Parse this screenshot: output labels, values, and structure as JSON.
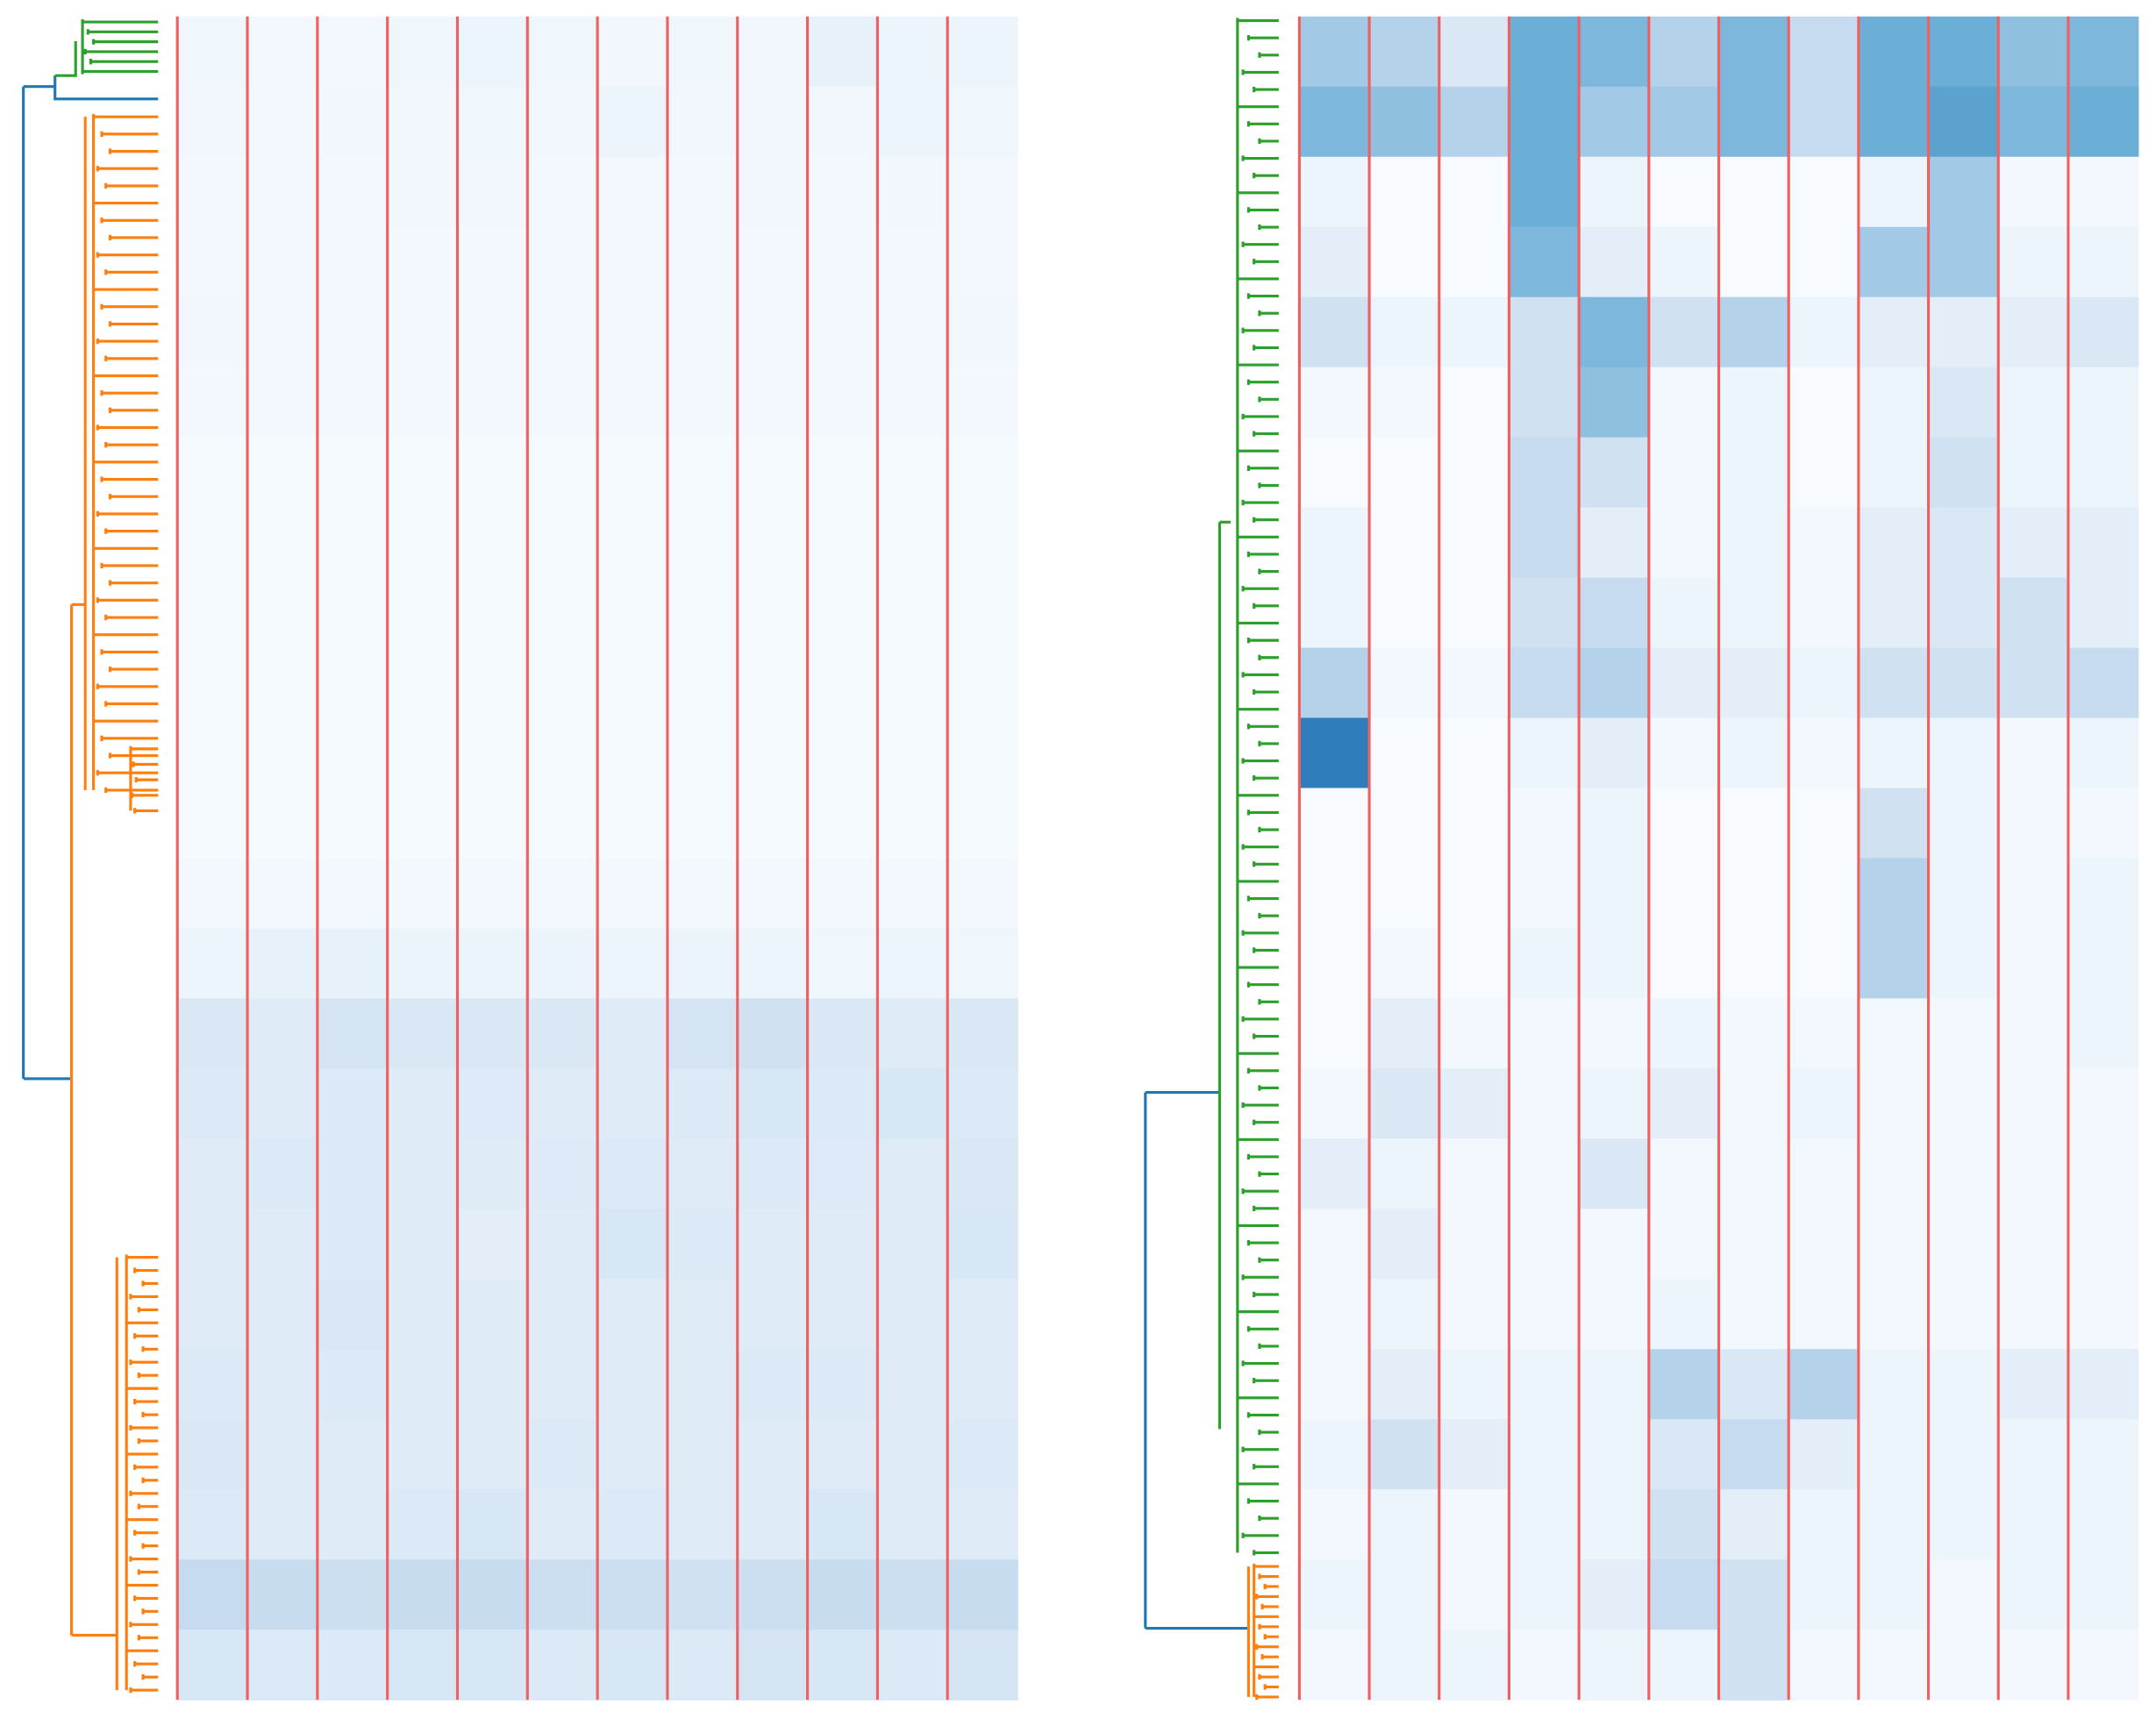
{
  "chart_data": [
    {
      "type": "heatmap",
      "colorscale": [
        "#f7fbff",
        "#c6dbef",
        "#6baed6",
        "#2171b5",
        "#08306b"
      ],
      "zlim": [
        0,
        1
      ],
      "separator_color": "#f06060",
      "values": [
        [
          0.04,
          0.02,
          0.02,
          0.04,
          0.05,
          0.04,
          0.03,
          0.04,
          0.03,
          0.08,
          0.05,
          0.05
        ],
        [
          0.03,
          0.02,
          0.03,
          0.03,
          0.04,
          0.03,
          0.05,
          0.03,
          0.03,
          0.03,
          0.05,
          0.04
        ],
        [
          0.02,
          0.02,
          0.02,
          0.03,
          0.03,
          0.02,
          0.02,
          0.02,
          0.03,
          0.02,
          0.03,
          0.02
        ],
        [
          0.02,
          0.02,
          0.02,
          0.02,
          0.02,
          0.02,
          0.02,
          0.02,
          0.02,
          0.02,
          0.02,
          0.02
        ],
        [
          0.03,
          0.02,
          0.02,
          0.02,
          0.02,
          0.02,
          0.02,
          0.02,
          0.02,
          0.02,
          0.02,
          0.03
        ],
        [
          0.02,
          0.02,
          0.02,
          0.02,
          0.02,
          0.02,
          0.02,
          0.02,
          0.02,
          0.02,
          0.02,
          0.02
        ],
        [
          0.01,
          0.01,
          0.01,
          0.01,
          0.01,
          0.01,
          0.01,
          0.01,
          0.01,
          0.01,
          0.01,
          0.01
        ],
        [
          0.01,
          0.01,
          0.01,
          0.01,
          0.01,
          0.01,
          0.01,
          0.01,
          0.01,
          0.01,
          0.01,
          0.01
        ],
        [
          0.01,
          0.01,
          0.01,
          0.01,
          0.01,
          0.01,
          0.01,
          0.01,
          0.01,
          0.01,
          0.01,
          0.01
        ],
        [
          0.01,
          0.01,
          0.01,
          0.01,
          0.01,
          0.01,
          0.01,
          0.01,
          0.01,
          0.01,
          0.01,
          0.01
        ],
        [
          0.01,
          0.01,
          0.01,
          0.01,
          0.01,
          0.01,
          0.01,
          0.01,
          0.01,
          0.01,
          0.01,
          0.01
        ],
        [
          0.01,
          0.01,
          0.01,
          0.01,
          0.01,
          0.01,
          0.01,
          0.01,
          0.01,
          0.01,
          0.01,
          0.01
        ],
        [
          0.02,
          0.02,
          0.02,
          0.02,
          0.02,
          0.02,
          0.02,
          0.02,
          0.02,
          0.02,
          0.02,
          0.02
        ],
        [
          0.05,
          0.08,
          0.08,
          0.06,
          0.06,
          0.06,
          0.05,
          0.06,
          0.05,
          0.04,
          0.05,
          0.04
        ],
        [
          0.15,
          0.12,
          0.18,
          0.15,
          0.15,
          0.15,
          0.12,
          0.18,
          0.2,
          0.15,
          0.12,
          0.15
        ],
        [
          0.14,
          0.12,
          0.14,
          0.12,
          0.13,
          0.12,
          0.12,
          0.14,
          0.16,
          0.14,
          0.16,
          0.14
        ],
        [
          0.12,
          0.14,
          0.14,
          0.12,
          0.12,
          0.13,
          0.14,
          0.12,
          0.14,
          0.13,
          0.12,
          0.15
        ],
        [
          0.12,
          0.12,
          0.14,
          0.12,
          0.1,
          0.12,
          0.16,
          0.14,
          0.12,
          0.12,
          0.12,
          0.16
        ],
        [
          0.12,
          0.12,
          0.15,
          0.12,
          0.12,
          0.12,
          0.12,
          0.12,
          0.12,
          0.12,
          0.12,
          0.12
        ],
        [
          0.14,
          0.12,
          0.14,
          0.12,
          0.12,
          0.12,
          0.12,
          0.12,
          0.14,
          0.14,
          0.12,
          0.12
        ],
        [
          0.15,
          0.12,
          0.12,
          0.12,
          0.12,
          0.14,
          0.12,
          0.12,
          0.12,
          0.12,
          0.12,
          0.14
        ],
        [
          0.14,
          0.12,
          0.12,
          0.14,
          0.16,
          0.12,
          0.14,
          0.12,
          0.12,
          0.16,
          0.12,
          0.12
        ],
        [
          0.25,
          0.24,
          0.22,
          0.24,
          0.24,
          0.22,
          0.22,
          0.2,
          0.22,
          0.24,
          0.22,
          0.24
        ],
        [
          0.16,
          0.14,
          0.14,
          0.16,
          0.16,
          0.14,
          0.16,
          0.14,
          0.18,
          0.16,
          0.14,
          0.18
        ]
      ]
    },
    {
      "type": "heatmap",
      "colorscale": [
        "#f7fbff",
        "#c6dbef",
        "#6baed6",
        "#2171b5",
        "#08306b"
      ],
      "zlim": [
        0,
        1
      ],
      "separator_color": "#f06060",
      "values": [
        [
          0.35,
          0.3,
          0.15,
          0.5,
          0.45,
          0.3,
          0.45,
          0.25,
          0.5,
          0.5,
          0.4,
          0.45
        ],
        [
          0.45,
          0.4,
          0.3,
          0.5,
          0.35,
          0.35,
          0.45,
          0.25,
          0.5,
          0.55,
          0.45,
          0.5
        ],
        [
          0.05,
          0,
          0,
          0.5,
          0.05,
          0,
          0,
          0,
          0.05,
          0.35,
          0.02,
          0.02
        ],
        [
          0.1,
          0,
          0,
          0.45,
          0.1,
          0.05,
          0,
          0,
          0.35,
          0.35,
          0.05,
          0.05
        ],
        [
          0.2,
          0.05,
          0.05,
          0.2,
          0.45,
          0.2,
          0.3,
          0.05,
          0.1,
          0.1,
          0.1,
          0.15
        ],
        [
          0.02,
          0.02,
          0,
          0.2,
          0.4,
          0.02,
          0.05,
          0,
          0.05,
          0.15,
          0.05,
          0.05
        ],
        [
          0,
          0,
          0,
          0.25,
          0.2,
          0.02,
          0.05,
          0,
          0.05,
          0.2,
          0.05,
          0.05
        ],
        [
          0.05,
          0,
          0,
          0.25,
          0.1,
          0.02,
          0.05,
          0.02,
          0.1,
          0.15,
          0.1,
          0.1
        ],
        [
          0.05,
          0,
          0,
          0.2,
          0.25,
          0.05,
          0.05,
          0.02,
          0.1,
          0.15,
          0.2,
          0.1
        ],
        [
          0.3,
          0.02,
          0.02,
          0.25,
          0.3,
          0.1,
          0.1,
          0.05,
          0.2,
          0.2,
          0.2,
          0.25
        ],
        [
          0.7,
          0,
          0,
          0.05,
          0.1,
          0.02,
          0.05,
          0.02,
          0.05,
          0.05,
          0.02,
          0.05
        ],
        [
          0,
          0,
          0,
          0.02,
          0.05,
          0,
          0,
          0,
          0.2,
          0.05,
          0.02,
          0.02
        ],
        [
          0,
          0,
          0,
          0.02,
          0.05,
          0,
          0,
          0,
          0.3,
          0.05,
          0.02,
          0.05
        ],
        [
          0,
          0.02,
          0,
          0.05,
          0.05,
          0,
          0,
          0,
          0.3,
          0.05,
          0.02,
          0.05
        ],
        [
          0,
          0.1,
          0.02,
          0.02,
          0.02,
          0.05,
          0.02,
          0.02,
          0.02,
          0.02,
          0.02,
          0.05
        ],
        [
          0.02,
          0.15,
          0.1,
          0.02,
          0.05,
          0.1,
          0.02,
          0.05,
          0.02,
          0.02,
          0.02,
          0.02
        ],
        [
          0.1,
          0.05,
          0.02,
          0.02,
          0.15,
          0.02,
          0.02,
          0.02,
          0.02,
          0.02,
          0.02,
          0.02
        ],
        [
          0.02,
          0.1,
          0.02,
          0.02,
          0.02,
          0.02,
          0.02,
          0.02,
          0.02,
          0.02,
          0.02,
          0.02
        ],
        [
          0.02,
          0.05,
          0.02,
          0.02,
          0.02,
          0.05,
          0.02,
          0.02,
          0.02,
          0.02,
          0.02,
          0.02
        ],
        [
          0.02,
          0.1,
          0.05,
          0.05,
          0.05,
          0.3,
          0.15,
          0.3,
          0.05,
          0.05,
          0.1,
          0.1
        ],
        [
          0.05,
          0.2,
          0.1,
          0.05,
          0.05,
          0.15,
          0.25,
          0.1,
          0.05,
          0.05,
          0.05,
          0.05
        ],
        [
          0.02,
          0.05,
          0.02,
          0.05,
          0.05,
          0.2,
          0.1,
          0.05,
          0.05,
          0.05,
          0.05,
          0.05
        ],
        [
          0.05,
          0.05,
          0.02,
          0.05,
          0.1,
          0.25,
          0.2,
          0.05,
          0.05,
          0.02,
          0.05,
          0.05
        ],
        [
          0.02,
          0.05,
          0.05,
          0.02,
          0.05,
          0.05,
          0.2,
          0.02,
          0.02,
          0.02,
          0.02,
          0.02
        ]
      ]
    }
  ]
}
